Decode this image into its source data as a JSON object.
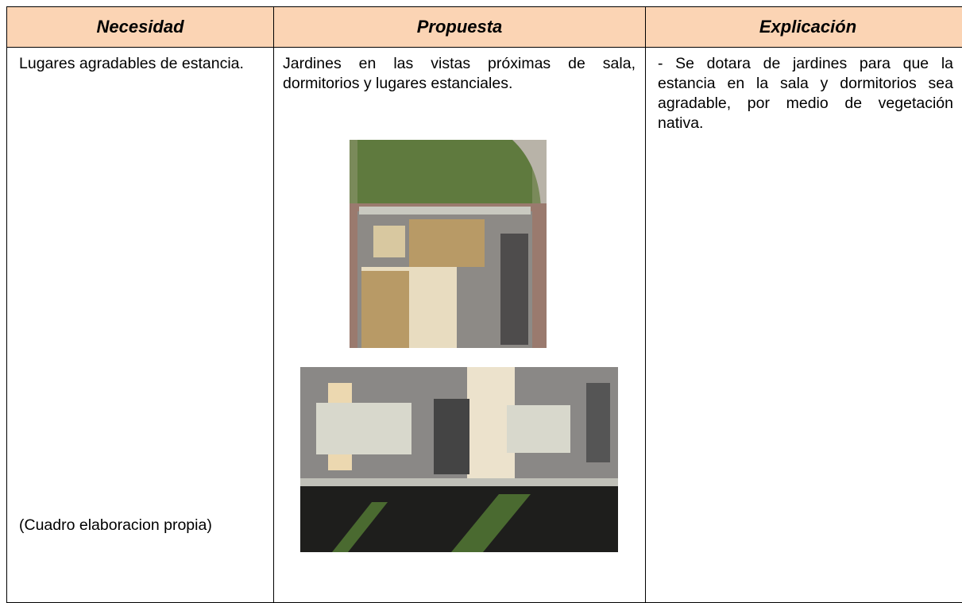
{
  "table": {
    "header": [
      "Necesidad",
      "Propuesta",
      "Explicación"
    ],
    "rows": [
      [
        "Lugares agradables de estancia.",
        "Jardines en las vistas próximas de sala, dormitorios y lugares estanciales.",
        "- Se dotara de jardines para que la estancia en la sala y dormitorios sea agradable, por medio de vegetación nativa."
      ]
    ],
    "note": "(Cuadro elaboracion propia)"
  }
}
